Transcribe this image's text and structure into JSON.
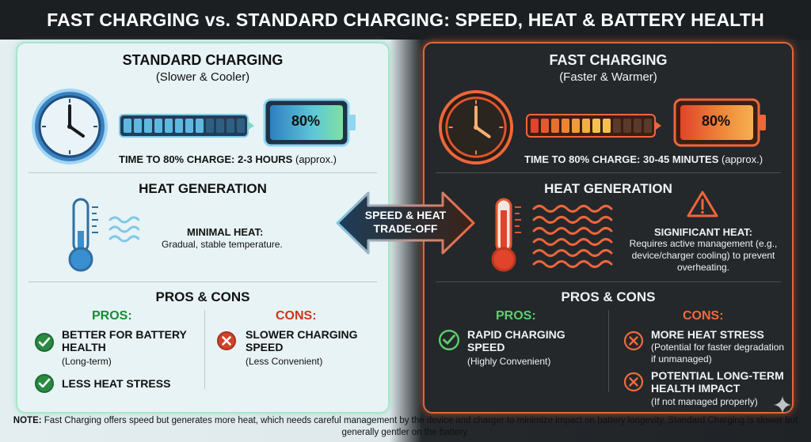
{
  "title": "FAST CHARGING vs. STANDARD CHARGING: SPEED, HEAT & BATTERY HEALTH",
  "colors": {
    "standard_accent": "#7fdcc0",
    "fast_accent": "#f0663a",
    "pros_green": "#1a8a3a",
    "cons_red": "#d0331e"
  },
  "standard": {
    "heading": "STANDARD CHARGING",
    "subheading": "(Slower & Cooler)",
    "battery_percent": "80%",
    "time_label": "TIME TO 80% CHARGE: 2-3 HOURS",
    "time_approx": "(approx.)",
    "heat_heading": "HEAT GENERATION",
    "heat_label": "MINIMAL HEAT:",
    "heat_desc": "Gradual, stable temperature.",
    "pc_heading": "PROS & CONS",
    "pros_heading": "PROS:",
    "cons_heading": "CONS:",
    "pros": [
      {
        "title": "BETTER FOR BATTERY HEALTH",
        "sub": "(Long-term)"
      },
      {
        "title": "LESS HEAT STRESS",
        "sub": ""
      }
    ],
    "cons": [
      {
        "title": "SLOWER CHARGING SPEED",
        "sub": "(Less Convenient)"
      }
    ]
  },
  "fast": {
    "heading": "FAST CHARGING",
    "subheading": "(Faster & Warmer)",
    "battery_percent": "80%",
    "time_label": "TIME TO 80% CHARGE: 30-45 MINUTES",
    "time_approx": "(approx.)",
    "heat_heading": "HEAT GENERATION",
    "heat_label": "SIGNIFICANT HEAT:",
    "heat_desc": "Requires active management (e.g., device/charger cooling) to prevent overheating.",
    "pc_heading": "PROS & CONS",
    "pros_heading": "PROS:",
    "cons_heading": "CONS:",
    "pros": [
      {
        "title": "RAPID CHARGING SPEED",
        "sub": "(Highly Convenient)"
      }
    ],
    "cons": [
      {
        "title": "MORE HEAT STRESS",
        "sub": "(Potential for faster degradation if unmanaged)"
      },
      {
        "title": "POTENTIAL LONG-TERM HEALTH IMPACT",
        "sub": "(If not managed properly)"
      }
    ]
  },
  "tradeoff": {
    "line1": "SPEED & HEAT",
    "line2": "TRADE-OFF"
  },
  "note": {
    "label": "NOTE:",
    "text": "Fast Charging offers speed but generates more heat, which needs careful management by the device and charger to minimize impact on battery longevity. Standard Charging is slower but generally gentler on the battery."
  },
  "icons": [
    "clock-icon",
    "progress-bar-icon",
    "battery-icon",
    "thermometer-icon",
    "heat-waves-icon",
    "warning-icon",
    "check-icon",
    "x-icon",
    "double-arrow-icon",
    "sparkle-icon"
  ]
}
